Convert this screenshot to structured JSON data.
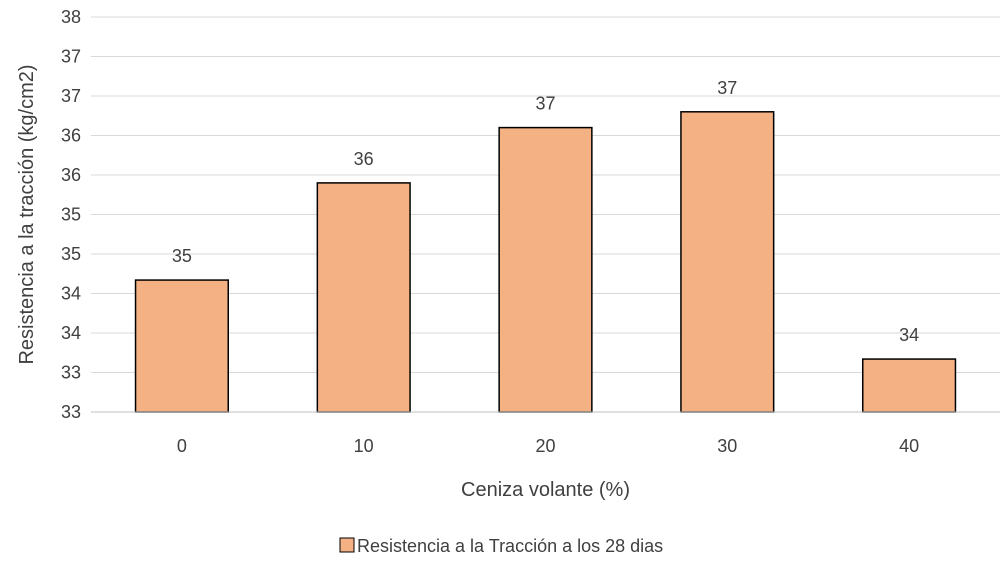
{
  "chart_data": {
    "type": "bar",
    "xlabel": "Ceniza volante (%)",
    "ylabel": "Resistencia a la tracción (kg/cm2)",
    "categories": [
      "0",
      "10",
      "20",
      "30",
      "40"
    ],
    "series": [
      {
        "name": "Resistencia a la Tracción a los 28 dias",
        "values": [
          34.67,
          35.9,
          36.6,
          36.8,
          33.67
        ],
        "data_labels": [
          "35",
          "36",
          "37",
          "37",
          "34"
        ],
        "color": "#F4B183",
        "edge_color": "#000000"
      }
    ],
    "ylim": [
      33,
      38
    ],
    "yticks": [
      33,
      33.5,
      34,
      34.5,
      35,
      35.5,
      36,
      36.5,
      37,
      37.5,
      38
    ],
    "ytick_labels": [
      "33",
      "33",
      "34",
      "34",
      "35",
      "35",
      "36",
      "36",
      "37",
      "37",
      "38"
    ],
    "grid": true,
    "grid_color": "#D9D9D9",
    "legend_position": "bottom"
  }
}
